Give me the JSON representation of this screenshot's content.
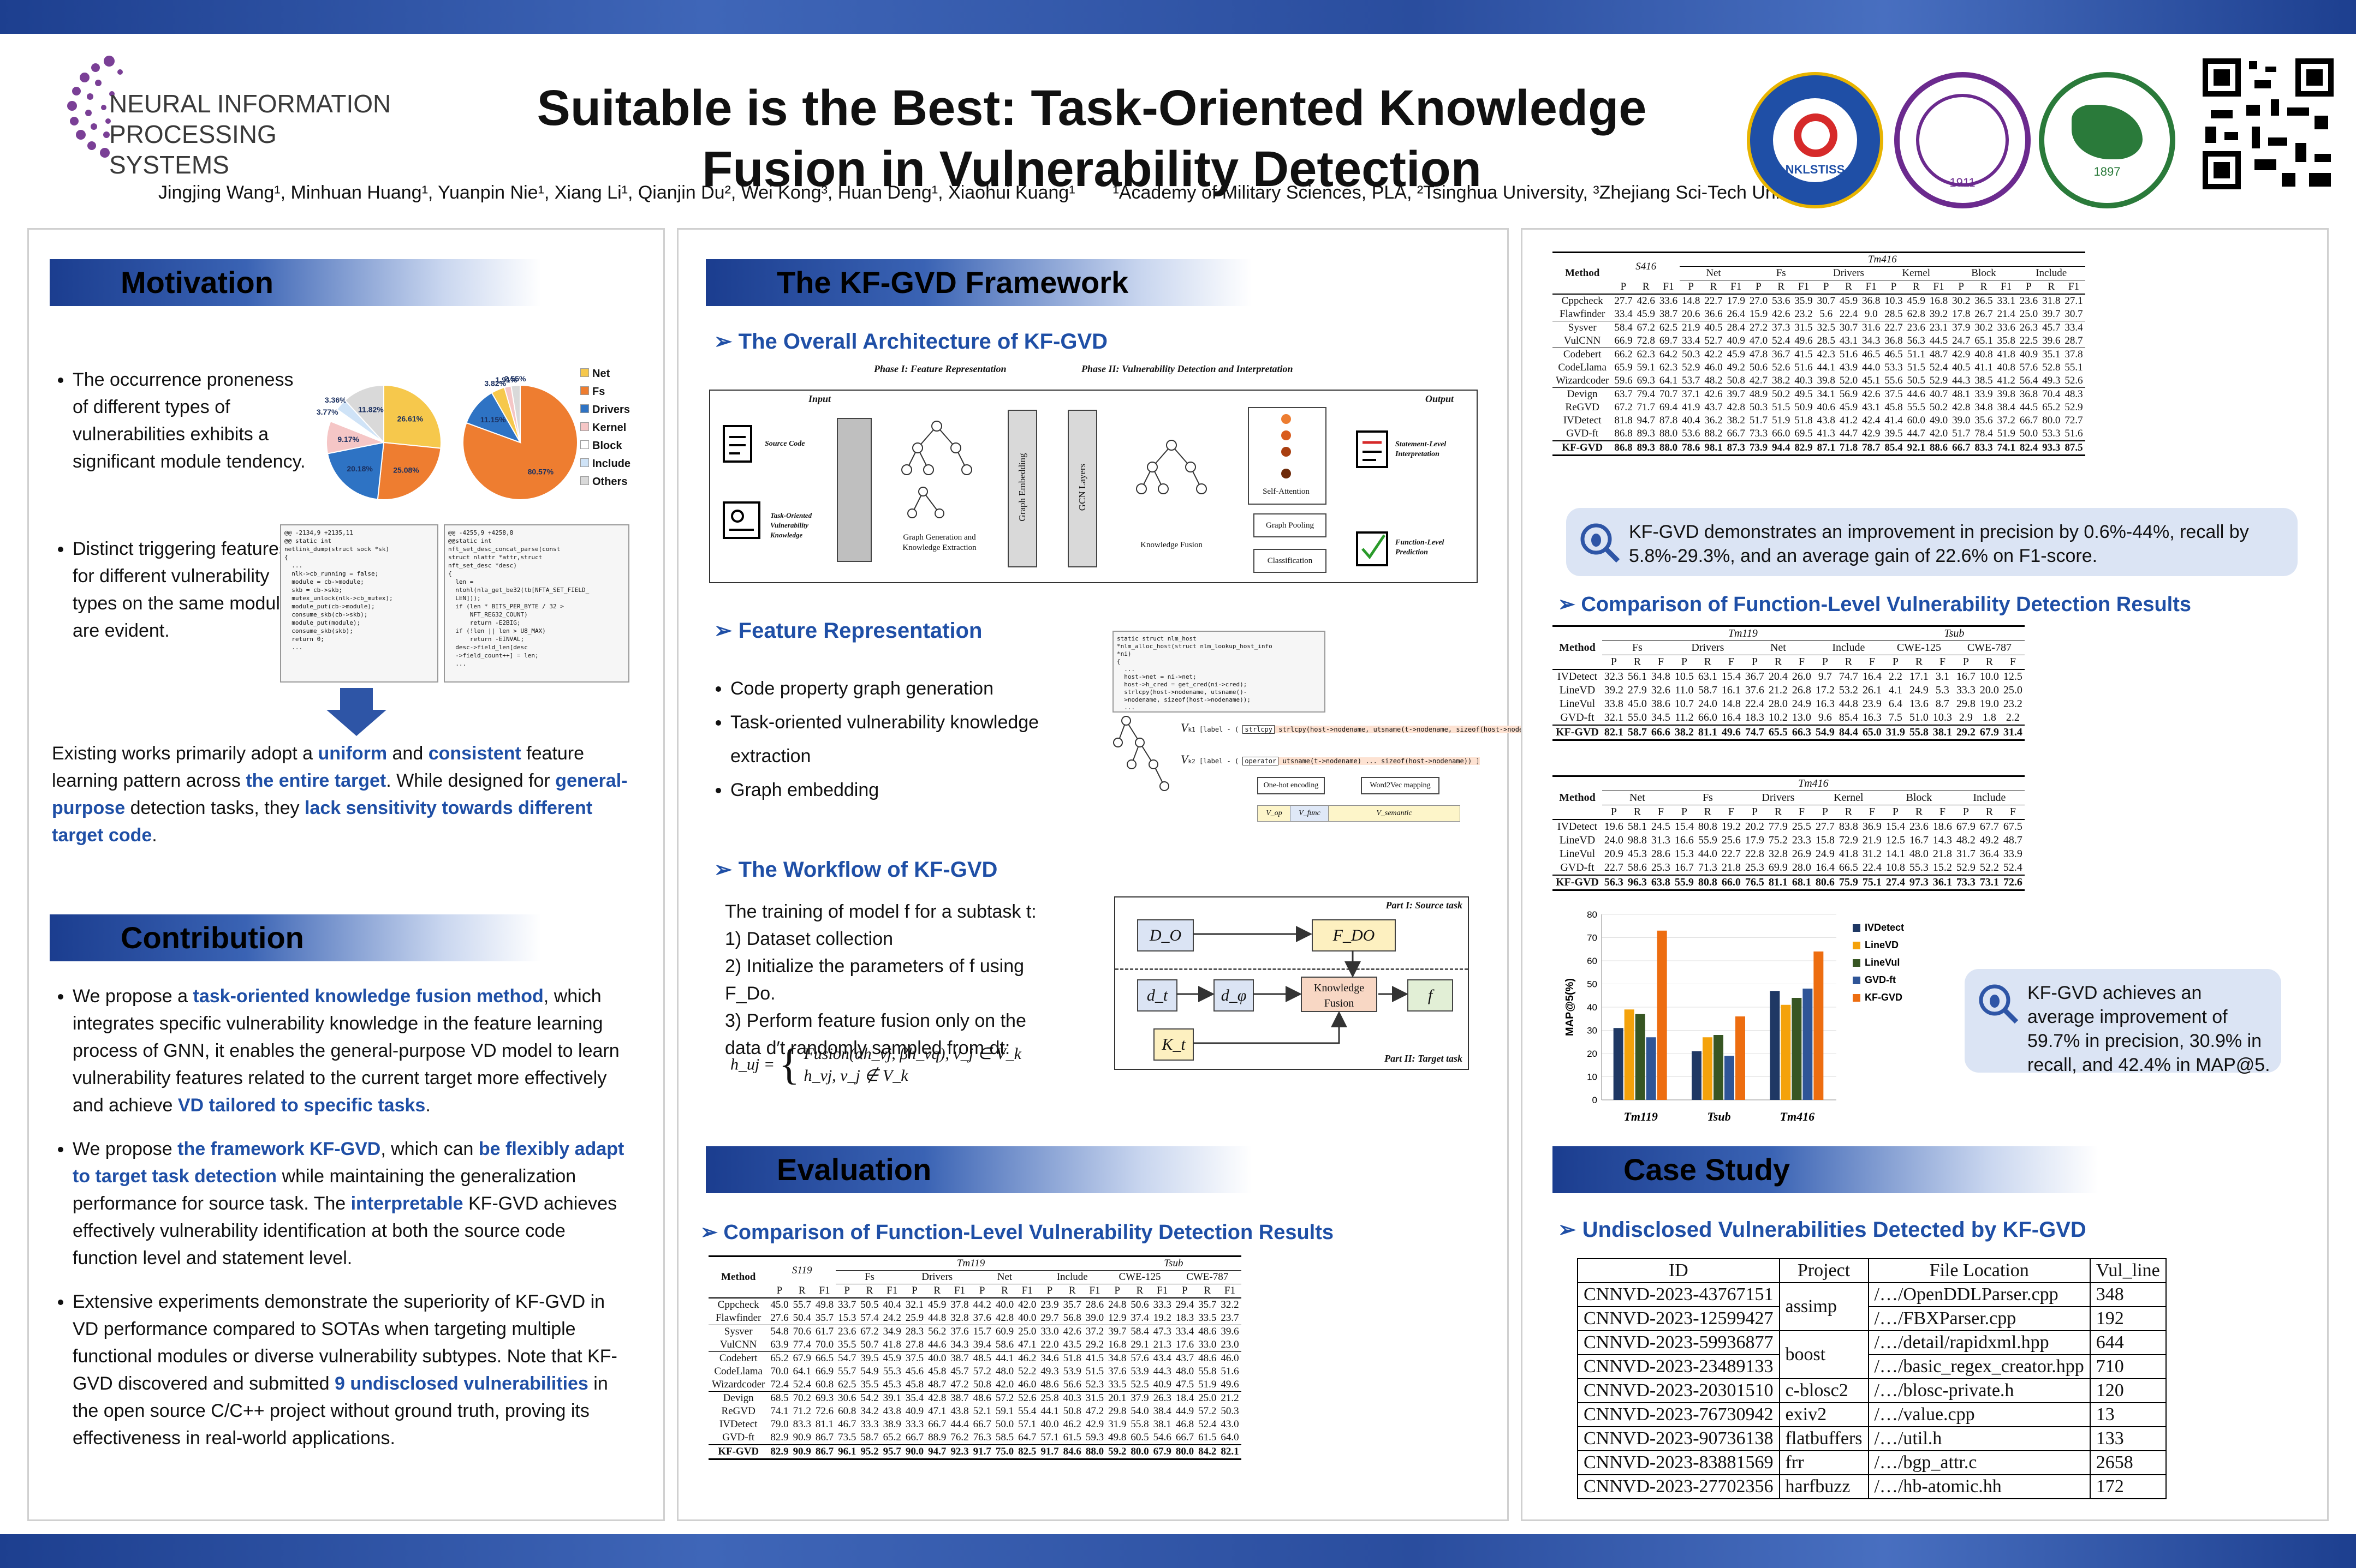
{
  "header": {
    "conference": "NEURAL INFORMATION PROCESSING SYSTEMS",
    "title_line1": "Suitable is the Best: Task-Oriented Knowledge",
    "title_line2": "Fusion in Vulnerability Detection",
    "authors": "Jingjing Wang¹, Minhuan Huang¹, Yuanpin Nie¹, Xiang Li¹, Qianjin Du², Wei Kong³, Huan Deng¹, Xiaohui Kuang¹",
    "affiliations": "¹Academy of Military Sciences, PLA, ²Tsinghua University, ³Zhejiang Sci-Tech University",
    "seal1_text": "NKLSTISS",
    "seal2_text": "1911",
    "seal3_text": "1897"
  },
  "motivation": {
    "heading": "Motivation",
    "bullet1": "The occurrence proneness of different types of vulnerabilities exhibits a significant module tendency.",
    "bullet2": "Distinct triggering features for different vulnerability types on the same module are evident.",
    "para_parts": [
      "Existing works primarily adopt a ",
      "uniform",
      " and ",
      "consistent",
      " feature learning pattern across ",
      "the entire target",
      ". While designed for ",
      "general-purpose",
      " detection tasks, they ",
      "lack sensitivity towards different target code",
      "."
    ],
    "legend": [
      "Net",
      "Fs",
      "Drivers",
      "Kernel",
      "Block",
      "Include",
      "Others"
    ],
    "legend_colors": [
      "#f6c84c",
      "#ee7d30",
      "#2e73c4",
      "#f5c6c6",
      "#ffffff",
      "#cfe3f7",
      "#d9d9d9"
    ],
    "pie1": [
      26.61,
      25.08,
      20.18,
      9.17,
      3.77,
      3.36,
      11.82
    ],
    "pie1_labels": [
      "26.61%",
      "25.08%",
      "20.18%",
      "9.17%",
      "3.77%",
      "3.36%",
      "11.82%"
    ],
    "pie2": [
      80.57,
      11.15,
      3.82,
      1.91,
      2.55
    ],
    "pie2_labels": [
      "80.57%",
      "11.15%",
      "3.82%",
      "1.91%",
      "2.55%"
    ],
    "code1": [
      "@@ -2134,9 +2135,11",
      "@@ static int",
      "netlink_dump(struct sock *sk)",
      "{",
      "  ...",
      "  nlk->cb_running = false;",
      "  module = cb->module;",
      "  skb = cb->skb;",
      "  mutex_unlock(nlk->cb_mutex);",
      "  module_put(cb->module);",
      "  consume_skb(cb->skb);",
      "  module_put(module);",
      "  consume_skb(skb);",
      "  return 0;",
      "  ..."
    ],
    "code2": [
      "@@ -4255,9 +4258,8",
      "@@static int",
      "nft_set_desc_concat_parse(const",
      "struct nlattr *attr,struct",
      "nft_set_desc *desc)",
      "{",
      "  len =",
      "  ntohl(nla_get_be32(tb[NFTA_SET_FIELD_",
      "  LEN]));",
      "",
      "  if (len * BITS_PER_BYTE / 32 >",
      "      NFT_REG32_COUNT)",
      "      return -E2BIG;",
      "  if (!len || len > U8_MAX)",
      "      return -EINVAL;",
      "  desc->field_len[desc",
      "  ->field_count++] = len;",
      "  ..."
    ]
  },
  "contribution": {
    "heading": "Contribution",
    "b1": [
      "We propose a ",
      "task-oriented knowledge fusion method",
      ", which integrates specific vulnerability knowledge in the feature learning process of GNN, it enables the general-purpose VD model to learn vulnerability features related to the current target more effectively and achieve ",
      "VD tailored to specific tasks",
      "."
    ],
    "b2": [
      "We propose ",
      "the framework KF-GVD",
      ", which can ",
      "be flexibly adapt to target task detection",
      " while maintaining the generalization performance for source task. The ",
      "interpretable",
      " KF-GVD achieves effectively vulnerability identification at both the source code function level and statement level."
    ],
    "b3": [
      "Extensive experiments demonstrate the superiority of KF-GVD in VD performance compared to SOTAs when targeting multiple functional modules or diverse vulnerability subtypes. Note that KF-GVD discovered and submitted ",
      "9 undisclosed vulnerabilities",
      " in the open source C/C++ project without ground truth, proving its effectiveness in real-world applications."
    ]
  },
  "framework": {
    "heading": "The KF-GVD Framework",
    "arch_title": "The Overall Architecture of KF-GVD",
    "phase1": "Phase I: Feature Representation",
    "phase2": "Phase II: Vulnerability Detection and Interpretation",
    "input": "Input",
    "output": "Output",
    "source_code": "Source Code",
    "task_knowledge": "Task-Oriented Vulnerability Knowledge",
    "graph_gen": "Graph Generation and Knowledge Extraction",
    "graph_emb": "Graph Embedding",
    "gcn": "GCN Layers",
    "kfusion": "Knowledge Fusion",
    "selfatt": "Self-Attention",
    "gpool": "Graph Pooling",
    "classif": "Classification",
    "stmt_interp": "Statement-Level Interpretation",
    "func_pred": "Function-Level Prediction",
    "fr_title": "Feature Representation",
    "fr_items": [
      "Code property graph generation",
      "Task-oriented vulnerability knowledge extraction",
      "Graph embedding"
    ],
    "fr_code": [
      "static struct nlm_host",
      "*nlm_alloc_host(struct nlm_lookup_host_info",
      "*ni)",
      "{",
      "  ...",
      "  host->net = ni->net;",
      "  host->h_cred = get_cred(ni->cred);",
      "  strlcpy(host->nodename, utsname()-",
      "  >nodename, sizeof(host->nodename));",
      "  ..."
    ],
    "vk1_label": "[label - ( ",
    "vk1_op": "strlcpy",
    "vk1_rest": " strlcpy(host->nodename, utsname(t->nodename, sizeof(host->nodename))) ]",
    "vk2_label": "[label - ( ",
    "vk2_op": "operator",
    "vk2_rest": " utsname(t->nodename) ... sizeof(host->nodename)) ]",
    "onehot": "One-hot encoding",
    "w2v": "Word2Vec mapping",
    "v_op": "V_op",
    "v_func": "V_func",
    "v_sem": "V_semantic",
    "wf_title": "The Workflow of KF-GVD",
    "wf_intro": "The training of model f for a subtask t:",
    "wf_steps": [
      "1)  Dataset collection",
      "2)  Initialize the parameters of f using F_Do.",
      "3)  Perform feature fusion only on the data d′t randomly sampled from dt:"
    ],
    "wf_eq1": "Fusion(αh_vj, βh_vq), v_j ∈ V_k",
    "wf_eq2": "h_vj, v_j ∉ V_k",
    "wf_lhs": "h_uj =",
    "part1": "Part I: Source task",
    "part2": "Part II: Target task",
    "do": "D_O",
    "fdo": "F_DO",
    "dt": "d_t",
    "dphi": "d_φ",
    "kf": "Knowledge Fusion",
    "f": "f",
    "kt": "K_t"
  },
  "evaluation": {
    "heading": "Evaluation",
    "sub": "Comparison of Function-Level Vulnerability Detection Results"
  },
  "table1": {
    "groups": [
      "S119",
      "Fs",
      "Drivers",
      "Net",
      "Include",
      "CWE-125",
      "CWE-787"
    ],
    "top_group": "Tm119",
    "top_group2": "Tsub",
    "rows": [
      [
        "Cppcheck",
        "45.0 55.7 49.8",
        "33.7 50.5 40.4",
        "32.1 45.9 37.8",
        "44.2 40.0 42.0",
        "23.9 35.7 28.6",
        "24.8 50.6 33.3",
        "29.4 35.7 32.2"
      ],
      [
        "Flawfinder",
        "27.6 50.4 35.7",
        "15.3 57.4 24.2",
        "25.9 44.8 32.8",
        "37.6 42.8 40.0",
        "29.7 56.8 39.0",
        "12.9 37.4 19.2",
        "18.3 33.5 23.7"
      ],
      [
        "Sysver",
        "54.8 70.6 61.7",
        "23.6 67.2 34.9",
        "28.3 56.2 37.6",
        "15.7 60.9 25.0",
        "33.0 42.6 37.2",
        "39.7 58.4 47.3",
        "33.4 48.6 39.6"
      ],
      [
        "VulCNN",
        "63.9 77.4 70.0",
        "35.5 50.7 41.8",
        "27.8 44.6 34.3",
        "39.4 58.6 47.1",
        "22.0 43.5 29.2",
        "16.8 29.1 21.3",
        "17.6 33.0 23.0"
      ],
      [
        "Codebert",
        "65.2 67.9 66.5",
        "54.7 39.5 45.9",
        "37.5 40.0 38.7",
        "48.5 44.1 46.2",
        "34.6 51.8 41.5",
        "34.8 57.6 43.4",
        "43.7 48.6 46.0"
      ],
      [
        "CodeLlama",
        "70.0 64.1 66.9",
        "55.7 54.9 55.3",
        "45.6 45.8 45.7",
        "57.2 48.0 52.2",
        "49.3 53.9 51.5",
        "37.6 53.9 44.3",
        "48.0 55.8 51.6"
      ],
      [
        "Wizardcoder",
        "72.4 52.4 60.8",
        "62.5 35.5 45.3",
        "45.8 48.7 47.2",
        "50.8 42.0 46.0",
        "48.6 56.6 52.3",
        "33.5 52.5 40.9",
        "47.5 51.9 49.6"
      ],
      [
        "Devign",
        "68.5 70.2 69.3",
        "30.6 54.2 39.1",
        "35.4 42.8 38.7",
        "48.6 57.2 52.6",
        "25.8 40.3 31.5",
        "20.1 37.9 26.3",
        "18.4 25.0 21.2"
      ],
      [
        "ReGVD",
        "74.1 71.2 72.6",
        "60.8 34.2 43.8",
        "40.9 47.1 43.8",
        "52.1 59.1 55.4",
        "44.1 50.8 47.2",
        "29.8 54.0 38.4",
        "44.9 57.2 50.3"
      ],
      [
        "IVDetect",
        "79.0 83.3 81.1",
        "46.7 33.3 38.9",
        "33.3 66.7 44.4",
        "66.7 50.0 57.1",
        "40.0 46.2 42.9",
        "31.9 55.8 38.1",
        "46.8 52.4 43.0"
      ],
      [
        "GVD-ft",
        "82.9 90.9 86.7",
        "73.5 58.7 65.2",
        "66.7 88.9 76.2",
        "76.3 58.5 64.7",
        "57.1 61.5 59.3",
        "49.8 60.5 54.6",
        "66.7 61.5 64.0"
      ],
      [
        "KF-GVD",
        "82.9 90.9 86.7",
        "96.1 95.2 95.7",
        "90.0 94.7 92.3",
        "91.7 75.0 82.5",
        "91.7 84.6 88.0",
        "59.2 80.0 67.9",
        "80.0 84.2 82.1"
      ]
    ]
  },
  "table2": {
    "groups": [
      "S416",
      "Net",
      "Fs",
      "Drivers",
      "Kernel",
      "Block",
      "Include"
    ],
    "top_group": "Tm416",
    "rows": [
      [
        "Cppcheck",
        "27.7 42.6 33.6",
        "14.8 22.7 17.9",
        "27.0 53.6 35.9",
        "30.7 45.9 36.8",
        "10.3 45.9 16.8",
        "30.2 36.5 33.1",
        "23.6 31.8 27.1"
      ],
      [
        "Flawfinder",
        "33.4 45.9 38.7",
        "20.6 36.6 26.4",
        "15.9 42.6 23.2",
        "5.6 22.4 9.0",
        "28.5 62.8 39.2",
        "17.8 26.7 21.4",
        "25.0 39.7 30.7"
      ],
      [
        "Sysver",
        "58.4 67.2 62.5",
        "21.9 40.5 28.4",
        "27.2 37.3 31.5",
        "32.5 30.7 31.6",
        "22.7 23.6 23.1",
        "37.9 30.2 33.6",
        "26.3 45.7 33.4"
      ],
      [
        "VulCNN",
        "66.9 72.8 69.7",
        "33.4 52.7 40.9",
        "47.0 52.4 49.6",
        "28.5 43.1 34.3",
        "36.8 56.3 44.5",
        "24.7 65.1 35.8",
        "22.5 39.6 28.7"
      ],
      [
        "Codebert",
        "66.2 62.3 64.2",
        "50.3 42.2 45.9",
        "47.8 36.7 41.5",
        "42.3 51.6 46.5",
        "46.5 51.1 48.7",
        "42.9 40.8 41.8",
        "40.9 35.1 37.8"
      ],
      [
        "CodeLlama",
        "65.9 59.1 62.3",
        "52.9 46.0 49.2",
        "50.6 52.6 51.6",
        "44.1 43.9 44.0",
        "53.3 51.5 52.4",
        "40.5 41.1 40.8",
        "57.6 52.8 55.1"
      ],
      [
        "Wizardcoder",
        "59.6 69.3 64.1",
        "53.7 48.2 50.8",
        "42.7 38.2 40.3",
        "39.8 52.0 45.1",
        "55.6 50.5 52.9",
        "44.3 38.5 41.2",
        "56.4 49.3 52.6"
      ],
      [
        "Devign",
        "63.7 79.4 70.7",
        "37.1 42.6 39.7",
        "48.9 50.2 49.5",
        "34.1 56.9 42.6",
        "37.5 44.6 40.7",
        "48.1 33.9 39.8",
        "36.8 70.4 48.3"
      ],
      [
        "ReGVD",
        "67.2 71.7 69.4",
        "41.9 43.7 42.8",
        "50.3 51.5 50.9",
        "40.6 45.9 43.1",
        "45.8 55.5 50.2",
        "42.8 34.8 38.4",
        "44.5 65.2 52.9"
      ],
      [
        "IVDetect",
        "81.8 94.7 87.8",
        "40.4 36.2 38.2",
        "51.7 51.9 51.8",
        "43.8 41.2 42.4",
        "41.4 60.0 49.0",
        "39.0 35.6 37.2",
        "66.7 80.0 72.7"
      ],
      [
        "GVD-ft",
        "86.8 89.3 88.0",
        "53.6 88.2 66.7",
        "73.3 66.0 69.5",
        "41.3 44.7 42.9",
        "39.5 44.7 42.0",
        "51.7 78.4 51.9",
        "50.0 53.3 51.6"
      ],
      [
        "KF-GVD",
        "86.8 89.3 88.0",
        "78.6 98.1 87.3",
        "73.9 94.4 82.9",
        "87.1 71.8 78.7",
        "85.4 92.1 88.6",
        "66.7 83.3 74.1",
        "82.4 93.3 87.5"
      ]
    ]
  },
  "callout1": "KF-GVD demonstrates an improvement in precision by 0.6%-44%, recall by 5.8%-29.3%, and an average gain of 22.6% on F1-score.",
  "sub_right": "Comparison of Function-Level Vulnerability Detection Results",
  "table3": {
    "groups": [
      "Fs",
      "Drivers",
      "Net",
      "Include",
      "CWE-125",
      "CWE-787"
    ],
    "top1": "Tm119",
    "top2": "Tsub",
    "rows": [
      [
        "IVDetect",
        "32.3 56.1 34.8",
        "10.5 63.1 15.4",
        "36.7 20.4 26.0",
        "9.7 74.7 16.4",
        "2.2 17.1 3.1",
        "16.7 10.0 12.5"
      ],
      [
        "LineVD",
        "39.2 27.9 32.6",
        "11.0 58.7 16.1",
        "37.6 21.2 26.8",
        "17.2 53.2 26.1",
        "4.1 24.9 5.3",
        "33.3 20.0 25.0"
      ],
      [
        "LineVul",
        "33.8 45.0 38.6",
        "10.7 24.0 14.8",
        "22.4 28.0 24.9",
        "16.3 44.8 23.9",
        "6.4 13.6 8.7",
        "29.8 19.0 23.2"
      ],
      [
        "GVD-ft",
        "32.1 55.0 34.5",
        "11.2 66.0 16.4",
        "18.3 10.2 13.0",
        "9.6 85.4 16.3",
        "7.5 51.0 10.3",
        "2.9 1.8 2.2"
      ],
      [
        "KF-GVD",
        "82.1 58.7 66.6",
        "38.2 81.1 49.6",
        "74.7 65.5 66.3",
        "54.9 84.4 65.0",
        "31.9 55.8 38.1",
        "29.2 67.9 31.4"
      ]
    ]
  },
  "table4": {
    "groups": [
      "Net",
      "Fs",
      "Drivers",
      "Kernel",
      "Block",
      "Include"
    ],
    "top": "Tm416",
    "rows": [
      [
        "IVDetect",
        "19.6 58.1 24.5",
        "15.4 80.8 19.2",
        "20.2 77.9 25.5",
        "27.7 83.8 36.9",
        "15.4 23.6 18.6",
        "67.9 67.7 67.5"
      ],
      [
        "LineVD",
        "24.0 98.8 31.3",
        "16.6 55.9 25.6",
        "17.9 75.2 23.3",
        "15.8 72.9 21.9",
        "12.5 16.7 14.3",
        "48.2 49.2 48.7"
      ],
      [
        "LineVul",
        "20.9 45.3 28.6",
        "15.3 44.0 22.7",
        "22.8 32.8 26.9",
        "24.9 41.8 31.2",
        "14.1 48.0 21.8",
        "31.7 36.4 33.9"
      ],
      [
        "GVD-ft",
        "22.7 58.6 25.3",
        "16.7 71.3 21.8",
        "25.3 69.9 28.0",
        "16.4 66.5 22.4",
        "10.8 55.3 15.2",
        "52.9 52.2 52.4"
      ],
      [
        "KF-GVD",
        "56.3 96.3 63.8",
        "55.9 80.8 66.0",
        "76.5 81.1 68.1",
        "80.6 75.9 75.1",
        "27.4 97.3 36.1",
        "73.3 73.1 72.6"
      ]
    ]
  },
  "chart_data": {
    "type": "bar",
    "categories": [
      "Tm119",
      "Tsub",
      "Tm416"
    ],
    "series": [
      {
        "name": "IVDetect",
        "values": [
          31,
          21,
          47
        ]
      },
      {
        "name": "LineVD",
        "values": [
          39,
          27,
          41
        ]
      },
      {
        "name": "LineVul",
        "values": [
          37,
          28,
          44
        ]
      },
      {
        "name": "GVD-ft",
        "values": [
          27,
          19,
          48
        ]
      },
      {
        "name": "KF-GVD",
        "values": [
          73,
          36,
          64
        ]
      }
    ],
    "colors": [
      "#1f3864",
      "#f4a20b",
      "#375623",
      "#2f5597",
      "#ed6d10"
    ],
    "ylabel": "MAP@5(%)",
    "ylim": [
      0,
      80
    ],
    "yticks": [
      "0",
      "10",
      "20",
      "30",
      "40",
      "50",
      "60",
      "70",
      "80"
    ],
    "legend_position": "right"
  },
  "callout2": "KF-GVD achieves an average improvement of 59.7% in precision, 30.9% in recall, and 42.4% in MAP@5.",
  "case": {
    "heading": "Case Study",
    "sub": "Undisclosed Vulnerabilities Detected by KF-GVD",
    "cols": [
      "ID",
      "Project",
      "File Location",
      "Vul_line"
    ],
    "rows": [
      [
        "CNNVD-2023-43767151",
        "assimp",
        "/…/OpenDDLParser.cpp",
        "348"
      ],
      [
        "CNNVD-2023-12599427",
        "",
        "/…/FBXParser.cpp",
        "192"
      ],
      [
        "CNNVD-2023-59936877",
        "boost",
        "/…/detail/rapidxml.hpp",
        "644"
      ],
      [
        "CNNVD-2023-23489133",
        "",
        "/…/basic_regex_creator.hpp",
        "710"
      ],
      [
        "CNNVD-2023-20301510",
        "c-blosc2",
        "/…/blosc-private.h",
        "120"
      ],
      [
        "CNNVD-2023-76730942",
        "exiv2",
        "/…/value.cpp",
        "13"
      ],
      [
        "CNNVD-2023-90736138",
        "flatbuffers",
        "/…/util.h",
        "133"
      ],
      [
        "CNNVD-2023-83881569",
        "frr",
        "/…/bgp_attr.c",
        "2658"
      ],
      [
        "CNNVD-2023-27702356",
        "harfbuzz",
        "/…/hb-atomic.hh",
        "172"
      ]
    ]
  },
  "tbl_head": {
    "method": "Method",
    "p": "P",
    "r": "R",
    "f1": "F1",
    "f": "F"
  }
}
